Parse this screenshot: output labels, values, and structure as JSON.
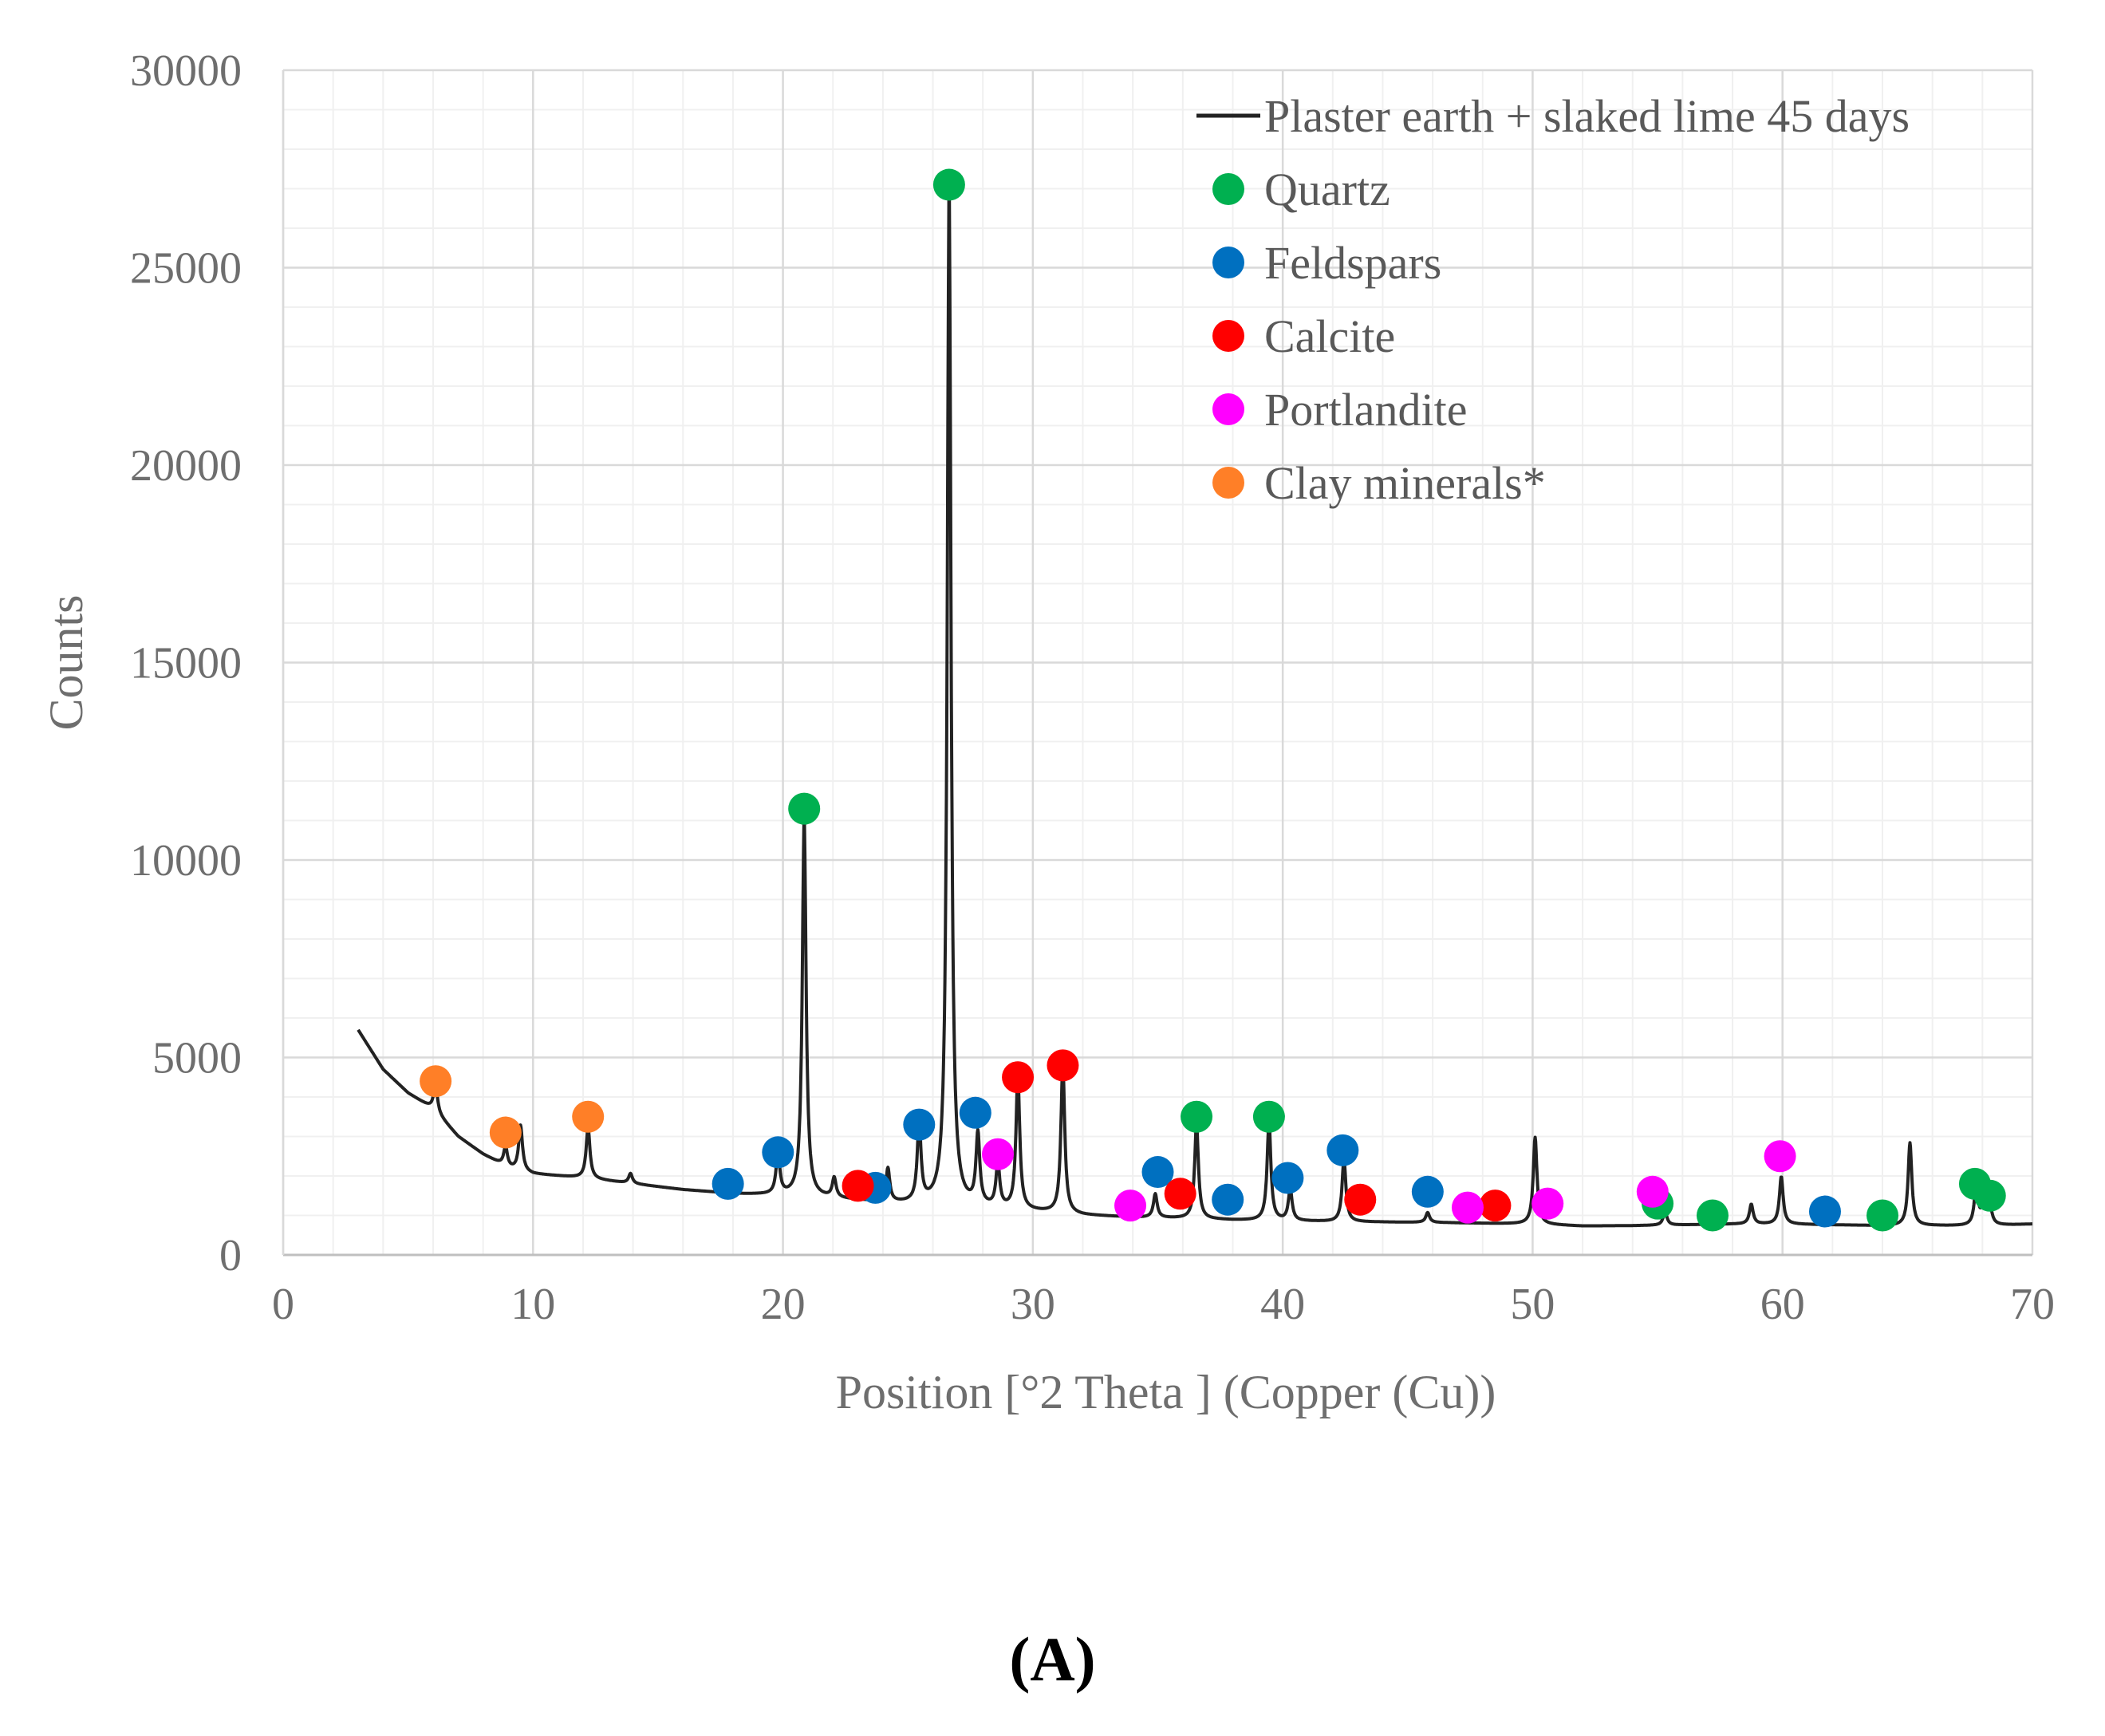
{
  "chart_data": {
    "type": "line",
    "title": "",
    "xlabel": "Position [°2 Theta ] (Copper (Cu))",
    "ylabel": "Counts",
    "xlim": [
      0,
      70
    ],
    "ylim": [
      0,
      30000
    ],
    "x_ticks": [
      "0",
      "10",
      "20",
      "30",
      "40",
      "50",
      "60",
      "70"
    ],
    "y_ticks": [
      "0",
      "5000",
      "10000",
      "15000",
      "20000",
      "25000",
      "30000"
    ],
    "grid": true,
    "legend_position": "top-right",
    "series": [
      {
        "name": "Plaster earth + slaked lime 45 days",
        "color": "#222222",
        "baseline": [
          [
            3,
            5700
          ],
          [
            4,
            4700
          ],
          [
            5,
            4100
          ],
          [
            6,
            3700
          ],
          [
            7,
            3000
          ],
          [
            8,
            2550
          ],
          [
            9,
            2200
          ],
          [
            10,
            2050
          ],
          [
            12,
            1950
          ],
          [
            14,
            1800
          ],
          [
            16,
            1650
          ],
          [
            18,
            1550
          ],
          [
            20,
            1500
          ],
          [
            22,
            1420
          ],
          [
            24,
            1320
          ],
          [
            26,
            1250
          ],
          [
            28,
            1180
          ],
          [
            30,
            1100
          ],
          [
            32,
            1000
          ],
          [
            34,
            950
          ],
          [
            36,
            920
          ],
          [
            38,
            880
          ],
          [
            40,
            860
          ],
          [
            42,
            840
          ],
          [
            44,
            830
          ],
          [
            46,
            820
          ],
          [
            48,
            800
          ],
          [
            50,
            780
          ],
          [
            52,
            730
          ],
          [
            54,
            740
          ],
          [
            56,
            760
          ],
          [
            58,
            780
          ],
          [
            60,
            780
          ],
          [
            62,
            760
          ],
          [
            64,
            740
          ],
          [
            66,
            740
          ],
          [
            68,
            730
          ],
          [
            70,
            780
          ]
        ],
        "peaks": [
          [
            6.1,
            700
          ],
          [
            8.9,
            500
          ],
          [
            9.5,
            1150
          ],
          [
            12.2,
            1300
          ],
          [
            13.9,
            250
          ],
          [
            19.8,
            1050
          ],
          [
            20.85,
            9600
          ],
          [
            22.05,
            500
          ],
          [
            24.2,
            850
          ],
          [
            25.45,
            2000
          ],
          [
            26.65,
            25800
          ],
          [
            27.8,
            1800
          ],
          [
            28.6,
            1100
          ],
          [
            29.4,
            3400
          ],
          [
            31.2,
            3800
          ],
          [
            34.9,
            600
          ],
          [
            36.55,
            2400
          ],
          [
            39.45,
            2500
          ],
          [
            40.3,
            800
          ],
          [
            42.45,
            1600
          ],
          [
            45.8,
            250
          ],
          [
            50.1,
            2200
          ],
          [
            55.3,
            350
          ],
          [
            58.75,
            500
          ],
          [
            59.95,
            1200
          ],
          [
            65.1,
            2100
          ],
          [
            67.75,
            1000
          ],
          [
            68.1,
            1100
          ],
          [
            68.3,
            400
          ]
        ]
      }
    ],
    "markers": [
      {
        "phase": "Quartz",
        "color": "#00b050",
        "points": [
          [
            20.85,
            11300
          ],
          [
            26.65,
            27100
          ],
          [
            36.55,
            3500
          ],
          [
            39.45,
            3500
          ],
          [
            55.0,
            1300
          ],
          [
            57.2,
            1000
          ],
          [
            64.0,
            1000
          ],
          [
            67.7,
            1800
          ],
          [
            68.3,
            1500
          ]
        ]
      },
      {
        "phase": "Feldspars",
        "color": "#0070c0",
        "points": [
          [
            17.8,
            1800
          ],
          [
            19.8,
            2600
          ],
          [
            23.7,
            1700
          ],
          [
            25.45,
            3300
          ],
          [
            27.7,
            3600
          ],
          [
            35.0,
            2100
          ],
          [
            37.8,
            1400
          ],
          [
            40.2,
            1950
          ],
          [
            42.4,
            2650
          ],
          [
            45.8,
            1600
          ],
          [
            61.7,
            1100
          ]
        ]
      },
      {
        "phase": "Calcite",
        "color": "#ff0000",
        "points": [
          [
            23.0,
            1750
          ],
          [
            29.4,
            4500
          ],
          [
            31.2,
            4800
          ],
          [
            35.9,
            1550
          ],
          [
            43.1,
            1400
          ],
          [
            48.5,
            1250
          ]
        ]
      },
      {
        "phase": "Portlandite",
        "color": "#ff00ff",
        "points": [
          [
            28.6,
            2550
          ],
          [
            33.9,
            1250
          ],
          [
            47.4,
            1200
          ],
          [
            50.6,
            1300
          ],
          [
            54.8,
            1600
          ],
          [
            59.9,
            2500
          ]
        ]
      },
      {
        "phase": "Clay minerals*",
        "color": "#ff7f27",
        "points": [
          [
            6.1,
            4400
          ],
          [
            8.9,
            3100
          ],
          [
            12.2,
            3500
          ]
        ]
      }
    ]
  },
  "legend": {
    "line_label": "Plaster earth + slaked lime 45 days",
    "items": [
      "Quartz",
      "Feldspars",
      "Calcite",
      "Portlandite",
      "Clay minerals*"
    ]
  },
  "panel_label": "(A)"
}
